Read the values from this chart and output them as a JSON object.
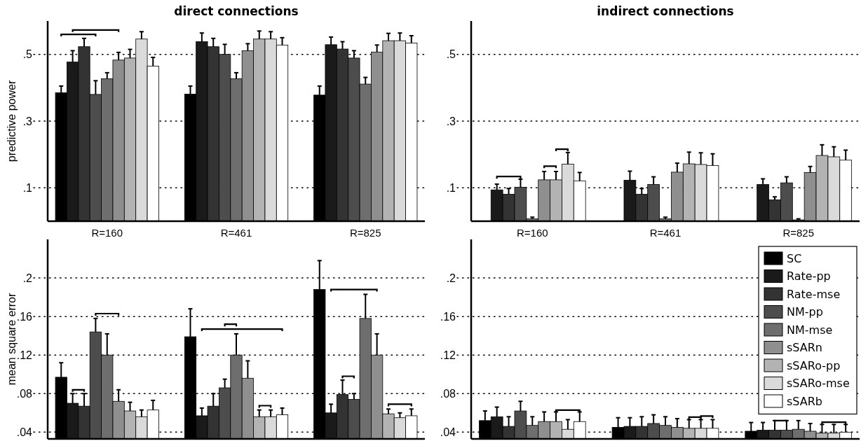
{
  "chart_data": [
    {
      "type": "bar",
      "title": "direct connections",
      "ylabel": "predictive power",
      "categories": [
        "R=160",
        "R=461",
        "R=825"
      ],
      "ylim": [
        0,
        0.6
      ],
      "yticks": [
        {
          "value": 0.1,
          "label": ".1"
        },
        {
          "value": 0.3,
          "label": ".3"
        },
        {
          "value": 0.5,
          "label": ".5"
        }
      ],
      "grid": "y",
      "line_style": "dotted",
      "legend": false,
      "series": [
        {
          "color": "#000000",
          "values": [
            0.385,
            0.381,
            0.378
          ],
          "errors": [
            [
              0.385,
              0.405
            ],
            [
              0.381,
              0.405
            ],
            [
              0.378,
              0.405
            ]
          ]
        },
        {
          "color": "#1a1a1a",
          "values": [
            0.477,
            0.538,
            0.529
          ],
          "errors": [
            [
              0.477,
              0.511
            ],
            [
              0.538,
              0.564
            ],
            [
              0.529,
              0.552
            ]
          ]
        },
        {
          "color": "#333333",
          "values": [
            0.523,
            0.523,
            0.516
          ],
          "errors": [
            [
              0.523,
              0.548
            ],
            [
              0.523,
              0.548
            ],
            [
              0.516,
              0.538
            ]
          ]
        },
        {
          "color": "#4d4d4d",
          "values": [
            0.38,
            0.5,
            0.489
          ],
          "errors": [
            [
              0.38,
              0.421
            ],
            [
              0.5,
              0.53
            ],
            [
              0.489,
              0.511
            ]
          ]
        },
        {
          "color": "#6e6e6e",
          "values": [
            0.427,
            0.427,
            0.411
          ],
          "errors": [
            [
              0.427,
              0.445
            ],
            [
              0.427,
              0.445
            ],
            [
              0.411,
              0.431
            ]
          ]
        },
        {
          "color": "#8f8f8f",
          "values": [
            0.483,
            0.511,
            0.507
          ],
          "errors": [
            [
              0.483,
              0.506
            ],
            [
              0.511,
              0.532
            ],
            [
              0.507,
              0.528
            ]
          ]
        },
        {
          "color": "#b3b3b3",
          "values": [
            0.489,
            0.546,
            0.541
          ],
          "errors": [
            [
              0.489,
              0.515
            ],
            [
              0.546,
              0.57
            ],
            [
              0.541,
              0.563
            ]
          ]
        },
        {
          "color": "#dadada",
          "values": [
            0.546,
            0.546,
            0.541
          ],
          "errors": [
            [
              0.546,
              0.568
            ],
            [
              0.546,
              0.568
            ],
            [
              0.541,
              0.564
            ]
          ]
        },
        {
          "color": "#ffffff",
          "values": [
            0.465,
            0.528,
            0.534
          ],
          "errors": [
            [
              0.465,
              0.491
            ],
            [
              0.528,
              0.55
            ],
            [
              0.534,
              0.556
            ]
          ]
        }
      ]
    },
    {
      "type": "bar",
      "title": "indirect connections",
      "categories": [
        "R=160",
        "R=461",
        "R=825"
      ],
      "ylim": [
        0,
        0.6
      ],
      "yticks": [
        {
          "value": 0.1,
          "label": ".1"
        },
        {
          "value": 0.3,
          "label": ".3"
        },
        {
          "value": 0.5,
          "label": ".5"
        }
      ],
      "grid": "y",
      "line_style": "dotted",
      "legend": false,
      "series": [
        {
          "values": [
            null,
            null,
            null
          ]
        },
        {
          "color": "#1a1a1a",
          "values": [
            0.094,
            0.123,
            0.11
          ],
          "errors": [
            [
              0.094,
              0.111
            ],
            [
              0.123,
              0.15
            ],
            [
              0.11,
              0.127
            ]
          ]
        },
        {
          "color": "#333333",
          "values": [
            0.081,
            0.081,
            0.064
          ],
          "errors": [
            [
              0.081,
              0.098
            ],
            [
              0.081,
              0.098
            ],
            [
              0.064,
              0.073
            ]
          ]
        },
        {
          "color": "#4d4d4d",
          "values": [
            0.102,
            0.11,
            0.115
          ],
          "errors": [
            [
              0.102,
              0.126
            ],
            [
              0.11,
              0.133
            ],
            [
              0.115,
              0.133
            ]
          ]
        },
        {
          "color": "#6e6e6e",
          "values": [
            0.007,
            0.007,
            0.004
          ],
          "errors": [
            [
              0.007,
              0.012
            ],
            [
              0.007,
              0.012
            ],
            [
              0.004,
              0.007
            ]
          ]
        },
        {
          "color": "#8f8f8f",
          "values": [
            0.124,
            0.147,
            0.146
          ],
          "errors": [
            [
              0.124,
              0.149
            ],
            [
              0.147,
              0.174
            ],
            [
              0.146,
              0.164
            ]
          ]
        },
        {
          "color": "#b3b3b3",
          "values": [
            0.124,
            0.172,
            0.197
          ],
          "errors": [
            [
              0.124,
              0.149
            ],
            [
              0.172,
              0.207
            ],
            [
              0.197,
              0.229
            ]
          ]
        },
        {
          "color": "#dadada",
          "values": [
            0.171,
            0.17,
            0.193
          ],
          "errors": [
            [
              0.171,
              0.206
            ],
            [
              0.17,
              0.205
            ],
            [
              0.193,
              0.223
            ]
          ]
        },
        {
          "color": "#ffffff",
          "values": [
            0.121,
            0.167,
            0.183
          ],
          "errors": [
            [
              0.121,
              0.146
            ],
            [
              0.167,
              0.202
            ],
            [
              0.183,
              0.213
            ]
          ]
        }
      ]
    },
    {
      "type": "bar",
      "ylabel": "mean square error",
      "categories": [
        null,
        null,
        null
      ],
      "tick_labels": "y",
      "ylim": [
        0.033,
        0.24
      ],
      "yticks": [
        {
          "value": 0.04,
          "label": ".04"
        },
        {
          "value": 0.08,
          "label": ".08"
        },
        {
          "value": 0.12,
          "label": ".12"
        },
        {
          "value": 0.16,
          "label": ".16"
        },
        {
          "value": 0.2,
          "label": ".2"
        }
      ],
      "grid": "y",
      "line_style": "dotted",
      "legend": false,
      "series": [
        {
          "color": "#000000",
          "values": [
            0.097,
            0.139,
            0.188
          ],
          "errors": [
            [
              0.097,
              0.112
            ],
            [
              0.139,
              0.168
            ],
            [
              0.188,
              0.218
            ]
          ]
        },
        {
          "color": "#1a1a1a",
          "values": [
            0.07,
            0.057,
            0.06
          ],
          "errors": [
            [
              0.07,
              0.08
            ],
            [
              0.057,
              0.065
            ],
            [
              0.06,
              0.069
            ]
          ]
        },
        {
          "color": "#333333",
          "values": [
            0.067,
            0.067,
            0.079
          ],
          "errors": [
            [
              0.067,
              0.08
            ],
            [
              0.067,
              0.08
            ],
            [
              0.079,
              0.094
            ]
          ]
        },
        {
          "color": "#4d4d4d",
          "values": [
            0.144,
            0.086,
            0.074
          ],
          "errors": [
            [
              0.144,
              0.158
            ],
            [
              0.086,
              0.095
            ],
            [
              0.074,
              0.08
            ]
          ]
        },
        {
          "color": "#6e6e6e",
          "values": [
            0.12,
            0.12,
            0.158
          ],
          "errors": [
            [
              0.12,
              0.142
            ],
            [
              0.12,
              0.142
            ],
            [
              0.158,
              0.183
            ]
          ]
        },
        {
          "color": "#8f8f8f",
          "values": [
            0.072,
            0.096,
            0.12
          ],
          "errors": [
            [
              0.072,
              0.084
            ],
            [
              0.096,
              0.114
            ],
            [
              0.12,
              0.142
            ]
          ]
        },
        {
          "color": "#b3b3b3",
          "values": [
            0.062,
            0.056,
            0.059
          ],
          "errors": [
            [
              0.062,
              0.071
            ],
            [
              0.056,
              0.063
            ],
            [
              0.059,
              0.064
            ]
          ]
        },
        {
          "color": "#dadada",
          "values": [
            0.056,
            0.056,
            0.055
          ],
          "errors": [
            [
              0.056,
              0.063
            ],
            [
              0.056,
              0.063
            ],
            [
              0.055,
              0.06
            ]
          ]
        },
        {
          "color": "#ffffff",
          "values": [
            0.063,
            0.058,
            0.057
          ],
          "errors": [
            [
              0.063,
              0.073
            ],
            [
              0.058,
              0.065
            ],
            [
              0.057,
              0.064
            ]
          ]
        }
      ]
    },
    {
      "type": "bar",
      "categories": [
        null,
        null,
        null
      ],
      "tick_labels": "y",
      "ylim": [
        0.033,
        0.24
      ],
      "yticks": [
        {
          "value": 0.04,
          "label": ".04"
        },
        {
          "value": 0.08,
          "label": ".08"
        },
        {
          "value": 0.12,
          "label": ".12"
        },
        {
          "value": 0.16,
          "label": ".16"
        },
        {
          "value": 0.2,
          "label": ".2"
        }
      ],
      "grid": "y",
      "line_style": "dotted",
      "legend": "top right",
      "series": [
        {
          "name": "SC",
          "color": "#000000",
          "values": [
            0.052,
            0.045,
            0.041
          ],
          "errors": [
            [
              0.052,
              0.062
            ],
            [
              0.045,
              0.055
            ],
            [
              0.041,
              0.05
            ]
          ]
        },
        {
          "name": "Rate-pp",
          "color": "#1a1a1a",
          "values": [
            0.056,
            0.046,
            0.042
          ],
          "errors": [
            [
              0.056,
              0.066
            ],
            [
              0.046,
              0.055
            ],
            [
              0.042,
              0.05
            ]
          ]
        },
        {
          "name": "Rate-mse",
          "color": "#333333",
          "values": [
            0.046,
            0.046,
            0.042
          ],
          "errors": [
            [
              0.046,
              0.056
            ],
            [
              0.046,
              0.056
            ],
            [
              0.042,
              0.052
            ]
          ]
        },
        {
          "name": "NM-pp",
          "color": "#4d4d4d",
          "values": [
            0.062,
            0.049,
            0.042
          ],
          "errors": [
            [
              0.062,
              0.072
            ],
            [
              0.049,
              0.058
            ],
            [
              0.042,
              0.052
            ]
          ]
        },
        {
          "name": "NM-mse",
          "color": "#6e6e6e",
          "values": [
            0.047,
            0.047,
            0.043
          ],
          "errors": [
            [
              0.047,
              0.056
            ],
            [
              0.047,
              0.056
            ],
            [
              0.043,
              0.052
            ]
          ]
        },
        {
          "name": "sSARn",
          "color": "#8f8f8f",
          "values": [
            0.051,
            0.045,
            0.041
          ],
          "errors": [
            [
              0.051,
              0.061
            ],
            [
              0.045,
              0.054
            ],
            [
              0.041,
              0.049
            ]
          ]
        },
        {
          "name": "sSARo-pp",
          "color": "#b3b3b3",
          "values": [
            0.051,
            0.044,
            0.039
          ],
          "errors": [
            [
              0.051,
              0.061
            ],
            [
              0.044,
              0.053
            ],
            [
              0.039,
              0.048
            ]
          ]
        },
        {
          "name": "sSARo-mse",
          "color": "#dadada",
          "values": [
            0.043,
            0.044,
            0.039
          ],
          "errors": [
            [
              0.043,
              0.053
            ],
            [
              0.044,
              0.053
            ],
            [
              0.039,
              0.048
            ]
          ]
        },
        {
          "name": "sSARb",
          "color": "#ffffff",
          "values": [
            0.051,
            0.044,
            0.04
          ],
          "errors": [
            [
              0.051,
              0.061
            ],
            [
              0.044,
              0.053
            ],
            [
              0.04,
              0.048
            ]
          ]
        }
      ]
    }
  ]
}
